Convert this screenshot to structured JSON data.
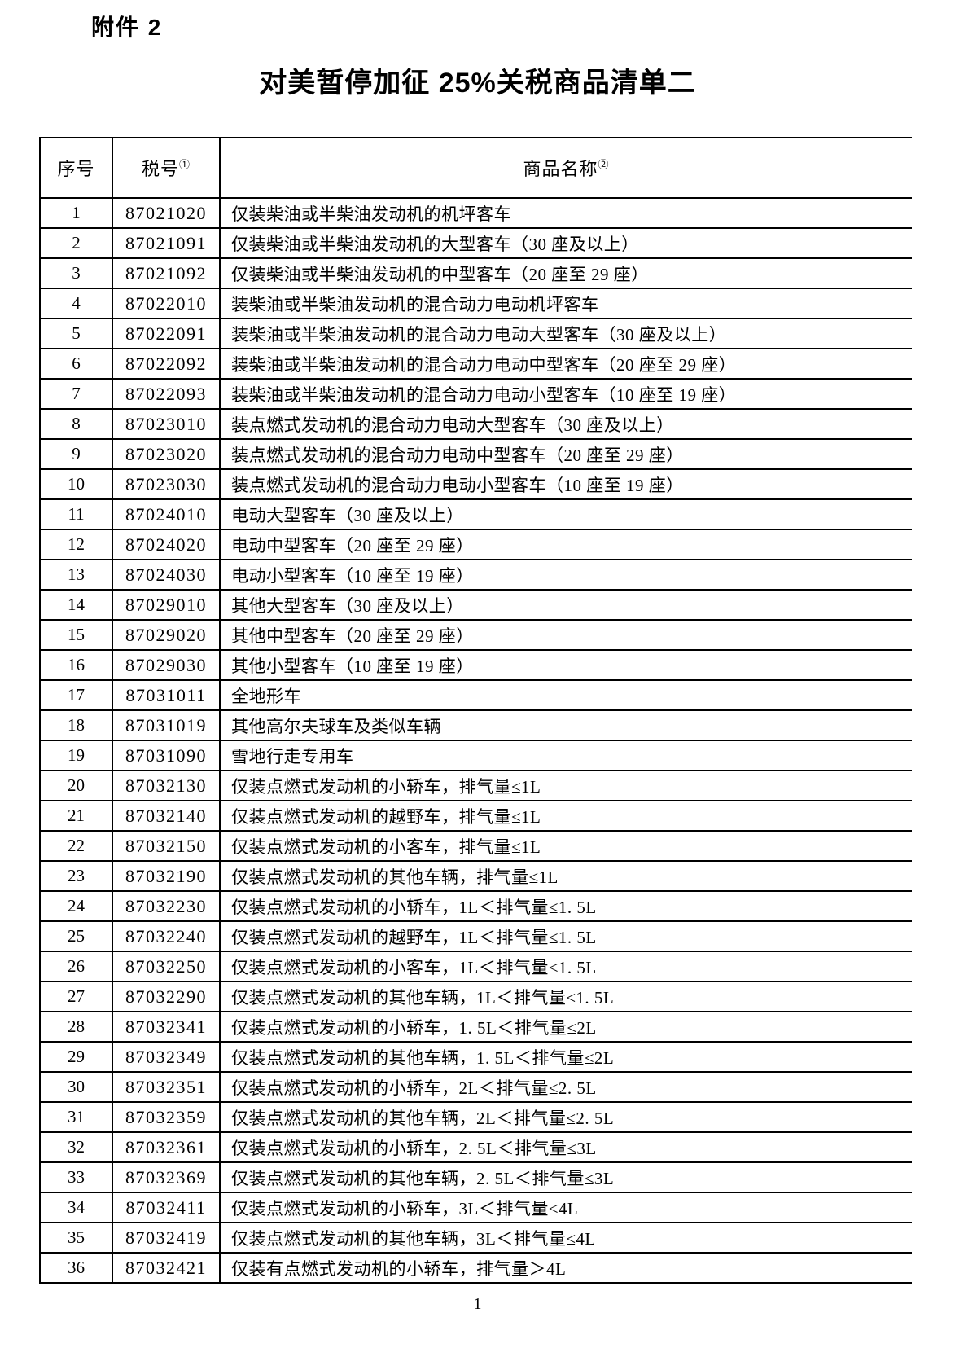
{
  "document": {
    "attachment_label": "附件 2",
    "title": "对美暂停加征 25%关税商品清单二",
    "page_number": "1"
  },
  "table": {
    "headers": [
      {
        "label": "序号",
        "sup": ""
      },
      {
        "label": "税号",
        "sup": "①"
      },
      {
        "label": "商品名称",
        "sup": "②"
      }
    ],
    "rows": [
      {
        "seq": "1",
        "code": "87021020",
        "name": "仅装柴油或半柴油发动机的机坪客车"
      },
      {
        "seq": "2",
        "code": "87021091",
        "name": "仅装柴油或半柴油发动机的大型客车（30 座及以上）"
      },
      {
        "seq": "3",
        "code": "87021092",
        "name": "仅装柴油或半柴油发动机的中型客车（20 座至 29 座）"
      },
      {
        "seq": "4",
        "code": "87022010",
        "name": "装柴油或半柴油发动机的混合动力电动机坪客车"
      },
      {
        "seq": "5",
        "code": "87022091",
        "name": "装柴油或半柴油发动机的混合动力电动大型客车（30 座及以上）"
      },
      {
        "seq": "6",
        "code": "87022092",
        "name": "装柴油或半柴油发动机的混合动力电动中型客车（20 座至 29 座）"
      },
      {
        "seq": "7",
        "code": "87022093",
        "name": "装柴油或半柴油发动机的混合动力电动小型客车（10 座至 19 座）"
      },
      {
        "seq": "8",
        "code": "87023010",
        "name": "装点燃式发动机的混合动力电动大型客车（30 座及以上）"
      },
      {
        "seq": "9",
        "code": "87023020",
        "name": "装点燃式发动机的混合动力电动中型客车（20 座至 29 座）"
      },
      {
        "seq": "10",
        "code": "87023030",
        "name": "装点燃式发动机的混合动力电动小型客车（10 座至 19 座）"
      },
      {
        "seq": "11",
        "code": "87024010",
        "name": "电动大型客车（30 座及以上）"
      },
      {
        "seq": "12",
        "code": "87024020",
        "name": "电动中型客车（20 座至 29 座）"
      },
      {
        "seq": "13",
        "code": "87024030",
        "name": "电动小型客车（10 座至 19 座）"
      },
      {
        "seq": "14",
        "code": "87029010",
        "name": "其他大型客车（30 座及以上）"
      },
      {
        "seq": "15",
        "code": "87029020",
        "name": "其他中型客车（20 座至 29 座）"
      },
      {
        "seq": "16",
        "code": "87029030",
        "name": "其他小型客车（10 座至 19 座）"
      },
      {
        "seq": "17",
        "code": "87031011",
        "name": "全地形车"
      },
      {
        "seq": "18",
        "code": "87031019",
        "name": "其他高尔夫球车及类似车辆"
      },
      {
        "seq": "19",
        "code": "87031090",
        "name": "雪地行走专用车"
      },
      {
        "seq": "20",
        "code": "87032130",
        "name": "仅装点燃式发动机的小轿车，排气量≤1L"
      },
      {
        "seq": "21",
        "code": "87032140",
        "name": "仅装点燃式发动机的越野车，排气量≤1L"
      },
      {
        "seq": "22",
        "code": "87032150",
        "name": "仅装点燃式发动机的小客车，排气量≤1L"
      },
      {
        "seq": "23",
        "code": "87032190",
        "name": "仅装点燃式发动机的其他车辆，排气量≤1L"
      },
      {
        "seq": "24",
        "code": "87032230",
        "name": "仅装点燃式发动机的小轿车，1L＜排气量≤1. 5L"
      },
      {
        "seq": "25",
        "code": "87032240",
        "name": "仅装点燃式发动机的越野车，1L＜排气量≤1. 5L"
      },
      {
        "seq": "26",
        "code": "87032250",
        "name": "仅装点燃式发动机的小客车，1L＜排气量≤1. 5L"
      },
      {
        "seq": "27",
        "code": "87032290",
        "name": "仅装点燃式发动机的其他车辆，1L＜排气量≤1. 5L"
      },
      {
        "seq": "28",
        "code": "87032341",
        "name": "仅装点燃式发动机的小轿车，1. 5L＜排气量≤2L"
      },
      {
        "seq": "29",
        "code": "87032349",
        "name": "仅装点燃式发动机的其他车辆，1. 5L＜排气量≤2L"
      },
      {
        "seq": "30",
        "code": "87032351",
        "name": "仅装点燃式发动机的小轿车，2L＜排气量≤2. 5L"
      },
      {
        "seq": "31",
        "code": "87032359",
        "name": "仅装点燃式发动机的其他车辆，2L＜排气量≤2. 5L"
      },
      {
        "seq": "32",
        "code": "87032361",
        "name": "仅装点燃式发动机的小轿车，2. 5L＜排气量≤3L"
      },
      {
        "seq": "33",
        "code": "87032369",
        "name": "仅装点燃式发动机的其他车辆，2. 5L＜排气量≤3L"
      },
      {
        "seq": "34",
        "code": "87032411",
        "name": "仅装点燃式发动机的小轿车，3L＜排气量≤4L"
      },
      {
        "seq": "35",
        "code": "87032419",
        "name": "仅装点燃式发动机的其他车辆，3L＜排气量≤4L"
      },
      {
        "seq": "36",
        "code": "87032421",
        "name": "仅装有点燃式发动机的小轿车，排气量＞4L"
      }
    ]
  }
}
